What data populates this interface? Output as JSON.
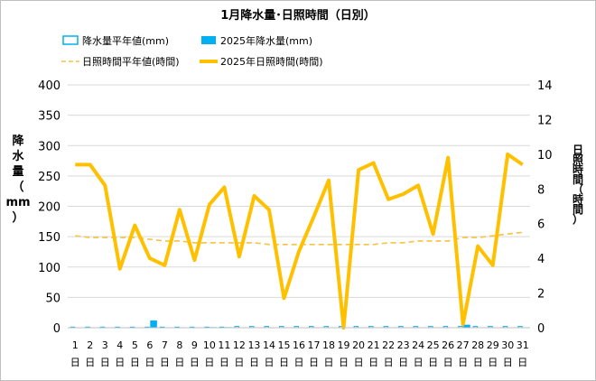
{
  "chart_data": {
    "type": "bar+line",
    "title": "1月降水量･日照時間（日別）",
    "legend": [
      {
        "key": "precip_normal",
        "label": "降水量平年値(mm)",
        "style": "outline-box",
        "color": "#00b0f0"
      },
      {
        "key": "precip_2025",
        "label": "2025年降水量(mm)",
        "style": "filled-box",
        "color": "#00b0f0"
      },
      {
        "key": "sun_normal",
        "label": "日照時間平年値(時間)",
        "style": "dashed-line",
        "color": "#f5c242"
      },
      {
        "key": "sun_2025",
        "label": "2025年日照時間(時間)",
        "style": "thick-line",
        "color": "#ffc000"
      }
    ],
    "y_left": {
      "label": "降水量（mm）",
      "label_chars": [
        "降",
        "水",
        "量",
        "（",
        "mm",
        "）"
      ],
      "min": 0,
      "max": 400,
      "ticks": [
        "0",
        "50",
        "100",
        "150",
        "200",
        "250",
        "300",
        "350",
        "400"
      ]
    },
    "y_right": {
      "label": "日照時間（時間）",
      "label_chars": [
        "日",
        "照",
        "時",
        "間",
        "（",
        "時",
        "間",
        "）"
      ],
      "min": 0,
      "max": 14,
      "ticks": [
        "0",
        "2",
        "4",
        "6",
        "8",
        "10",
        "12",
        "14"
      ]
    },
    "categories": [
      "1",
      "2",
      "3",
      "4",
      "5",
      "6",
      "7",
      "8",
      "9",
      "10",
      "11",
      "12",
      "13",
      "14",
      "15",
      "16",
      "17",
      "18",
      "19",
      "20",
      "21",
      "22",
      "23",
      "24",
      "25",
      "26",
      "27",
      "28",
      "29",
      "30",
      "31"
    ],
    "category_suffix": "日",
    "series": [
      {
        "name": "降水量平年値(mm)",
        "axis": "left",
        "kind": "bar",
        "values": [
          1,
          1,
          1,
          1,
          1,
          1,
          1,
          1,
          1,
          1,
          1,
          2,
          2,
          2,
          2,
          2,
          2,
          2,
          2,
          2,
          2,
          2,
          2,
          2,
          2,
          2,
          2,
          2,
          2,
          2,
          2
        ]
      },
      {
        "name": "2025年降水量(mm)",
        "axis": "left",
        "kind": "bar",
        "values": [
          0,
          0,
          0,
          0,
          0,
          12,
          0,
          0,
          0,
          1,
          1,
          0,
          0,
          0,
          0,
          0,
          0,
          0,
          0,
          0,
          0,
          0,
          0,
          0,
          0,
          0,
          5,
          0,
          0,
          0,
          0
        ]
      },
      {
        "name": "日照時間平年値(時間)",
        "axis": "right",
        "kind": "line",
        "dashed": true,
        "values": [
          5.3,
          5.2,
          5.2,
          5.2,
          5.2,
          5.1,
          5.0,
          5.0,
          4.9,
          4.9,
          4.9,
          4.9,
          4.9,
          4.8,
          4.8,
          4.8,
          4.8,
          4.8,
          4.8,
          4.8,
          4.8,
          4.9,
          4.9,
          5.0,
          5.0,
          5.0,
          5.2,
          5.2,
          5.3,
          5.4,
          5.5
        ]
      },
      {
        "name": "2025年日照時間(時間)",
        "axis": "right",
        "kind": "line",
        "dashed": false,
        "values": [
          9.4,
          9.4,
          8.2,
          3.4,
          5.9,
          4.0,
          3.6,
          6.8,
          3.9,
          7.1,
          8.1,
          4.1,
          7.6,
          6.8,
          1.7,
          4.4,
          6.4,
          8.5,
          0.0,
          9.1,
          9.5,
          7.4,
          7.7,
          8.2,
          5.4,
          9.8,
          0.2,
          4.7,
          3.6,
          10.0,
          9.4
        ]
      }
    ]
  }
}
